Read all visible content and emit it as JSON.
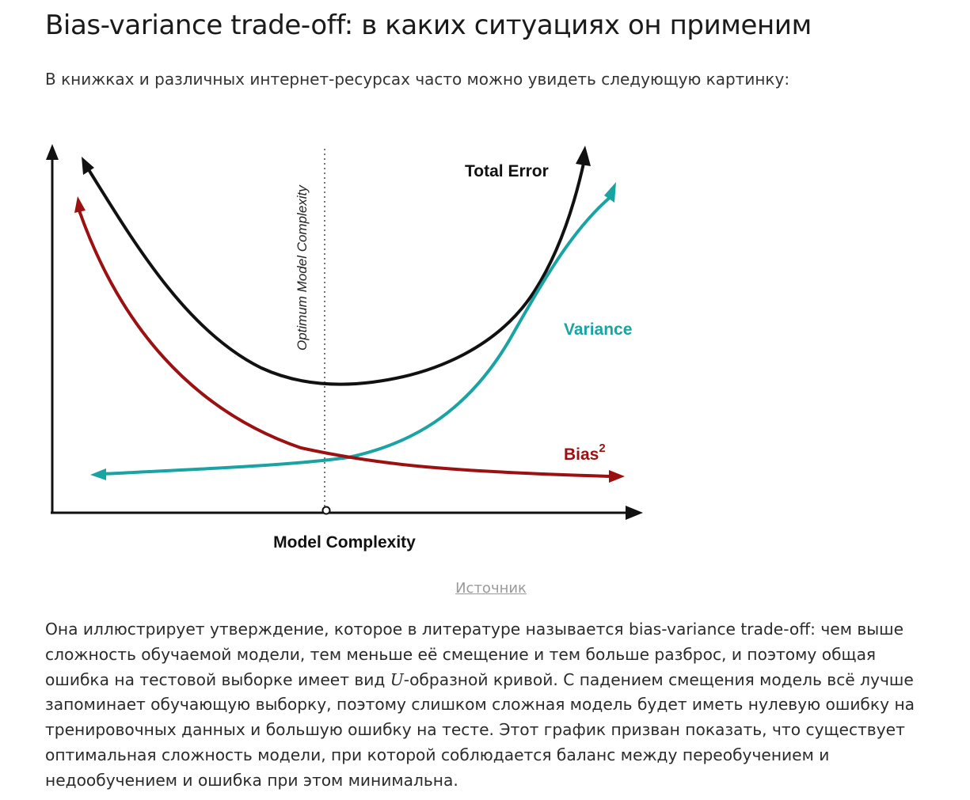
{
  "article": {
    "title": "Bias-variance trade-off: в каких ситуациях он применим",
    "intro": "В книжках и различных интернет-ресурсах часто можно увидеть следующую картинку:"
  },
  "figure": {
    "total_error_label": "Total Error",
    "variance_label": "Variance",
    "bias_label": "Bias",
    "bias_exponent": "2",
    "optimum_label": "Optimum Model Complexity",
    "x_axis_label": "Model Complexity",
    "colors": {
      "total_error": "#111111",
      "variance": "#1aa3a3",
      "bias": "#9b1111"
    }
  },
  "source_link": "Источник",
  "body": {
    "part1": "Она иллюстрирует утверждение, которое в литературе называется ",
    "term": "bias-variance trade-off",
    "part2": ": чем выше сложность обучаемой модели, тем меньше её смещение и тем больше разброс, и поэтому общая ошибка на тестовой выборке имеет вид ",
    "u_symbol": "U",
    "part3": "-образной кривой. С падением смещения модель всё лучше запоминает обучающую выборку, поэтому слишком сложная модель будет иметь нулевую ошибку на тренировочных данных и большую ошибку на тесте. Этот график призван показать, что существует оптимальная сложность модели, при которой соблюдается баланс между переобучением и недообучением и ошибка при этом минимальна."
  }
}
